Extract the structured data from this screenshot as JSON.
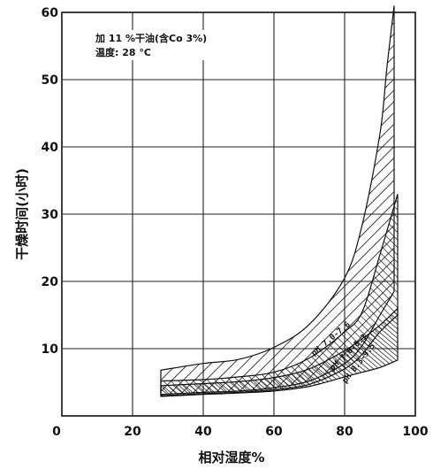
{
  "chart_data": {
    "type": "area",
    "title": "",
    "annotations": [
      "加 11 %干油(含Co 3%)",
      "温度: 28 °C"
    ],
    "xlabel": "相对湿度%",
    "ylabel": "干燥时间(小时)",
    "xlim": [
      0,
      100
    ],
    "ylim": [
      0,
      60
    ],
    "x_ticks": [
      0,
      20,
      40,
      60,
      80,
      100
    ],
    "y_ticks": [
      0,
      10,
      20,
      30,
      40,
      50,
      60
    ],
    "grid": true,
    "series": [
      {
        "name": "pH 7.0-7.6",
        "hatch": "wide",
        "upper": [
          [
            28,
            6.8
          ],
          [
            40,
            7.8
          ],
          [
            50,
            8.4
          ],
          [
            60,
            10.2
          ],
          [
            70,
            13.6
          ],
          [
            80,
            20.5
          ],
          [
            85,
            28.5
          ],
          [
            90,
            42
          ],
          [
            92,
            52
          ],
          [
            94,
            61
          ]
        ],
        "lower": [
          [
            28,
            3.2
          ],
          [
            40,
            3.5
          ],
          [
            50,
            3.7
          ],
          [
            60,
            4.2
          ],
          [
            70,
            5.2
          ],
          [
            80,
            7.8
          ],
          [
            85,
            10.5
          ],
          [
            90,
            15
          ],
          [
            94,
            18.5
          ]
        ]
      },
      {
        "name": "pH 7.6-8.3",
        "hatch": "medium",
        "upper": [
          [
            28,
            5.2
          ],
          [
            40,
            5.4
          ],
          [
            50,
            5.8
          ],
          [
            60,
            6.5
          ],
          [
            70,
            8.6
          ],
          [
            80,
            12.5
          ],
          [
            85,
            15.5
          ],
          [
            90,
            24
          ],
          [
            95,
            33
          ]
        ],
        "lower": [
          [
            28,
            3.0
          ],
          [
            40,
            3.3
          ],
          [
            50,
            3.5
          ],
          [
            60,
            3.9
          ],
          [
            70,
            4.7
          ],
          [
            80,
            7
          ],
          [
            85,
            9.2
          ],
          [
            90,
            12.5
          ],
          [
            95,
            15
          ]
        ]
      },
      {
        "name": "pH 8.3-9.5",
        "hatch": "fine",
        "upper": [
          [
            28,
            4.5
          ],
          [
            40,
            4.8
          ],
          [
            50,
            5.1
          ],
          [
            60,
            5.7
          ],
          [
            70,
            7
          ],
          [
            80,
            9.7
          ],
          [
            85,
            11.5
          ],
          [
            90,
            13.5
          ],
          [
            95,
            16
          ]
        ],
        "lower": [
          [
            28,
            2.9
          ],
          [
            40,
            3.2
          ],
          [
            50,
            3.4
          ],
          [
            60,
            3.7
          ],
          [
            70,
            4.4
          ],
          [
            80,
            5.8
          ],
          [
            85,
            6.5
          ],
          [
            90,
            7.2
          ],
          [
            95,
            8.3
          ]
        ]
      }
    ]
  }
}
